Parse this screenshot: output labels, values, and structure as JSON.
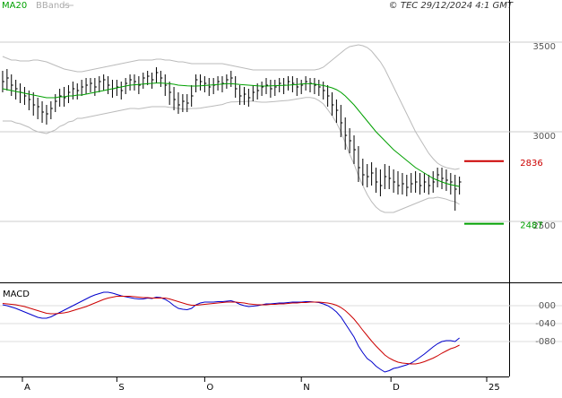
{
  "source": "© TEC 29/12/2024 4:1 GMT",
  "chart_data": [
    {
      "type": "ohlc",
      "xlim": [
        -0.6,
        115.3
      ],
      "xticks": [
        {
          "value": 4.5,
          "label": "A"
        },
        {
          "value": 26,
          "label": "S"
        },
        {
          "value": 46,
          "label": "O"
        },
        {
          "value": 68,
          "label": "N"
        },
        {
          "value": 88.4,
          "label": "D"
        },
        {
          "value": 110.2,
          "label": "25"
        }
      ],
      "ylim": [
        2160,
        3735
      ],
      "yticks": [
        2500,
        3000,
        3500
      ],
      "grid": true,
      "color": "#000000",
      "high": [
        3340,
        3350,
        3320,
        3290,
        3270,
        3250,
        3230,
        3220,
        3190,
        3170,
        3150,
        3170,
        3210,
        3240,
        3250,
        3260,
        3280,
        3270,
        3290,
        3300,
        3300,
        3300,
        3310,
        3320,
        3310,
        3290,
        3290,
        3280,
        3300,
        3320,
        3320,
        3310,
        3330,
        3340,
        3330,
        3360,
        3340,
        3320,
        3280,
        3250,
        3220,
        3210,
        3210,
        3260,
        3320,
        3320,
        3310,
        3300,
        3300,
        3310,
        3310,
        3320,
        3340,
        3310,
        3260,
        3250,
        3240,
        3260,
        3270,
        3280,
        3300,
        3290,
        3290,
        3300,
        3300,
        3310,
        3310,
        3300,
        3290,
        3310,
        3300,
        3300,
        3290,
        3280,
        3260,
        3220,
        3180,
        3150,
        3080,
        3020,
        2980,
        2920,
        2850,
        2820,
        2830,
        2800,
        2790,
        2820,
        2810,
        2790,
        2780,
        2770,
        2760,
        2770,
        2780,
        2770,
        2770,
        2760,
        2780,
        2800,
        2800,
        2790,
        2770,
        2760,
        2750
      ],
      "low": [
        3220,
        3230,
        3200,
        3180,
        3160,
        3150,
        3120,
        3090,
        3070,
        3050,
        3040,
        3070,
        3110,
        3140,
        3140,
        3160,
        3180,
        3180,
        3200,
        3210,
        3220,
        3200,
        3220,
        3230,
        3210,
        3190,
        3200,
        3180,
        3210,
        3230,
        3230,
        3210,
        3240,
        3260,
        3240,
        3270,
        3250,
        3200,
        3150,
        3120,
        3100,
        3110,
        3110,
        3140,
        3220,
        3230,
        3220,
        3200,
        3210,
        3230,
        3220,
        3240,
        3250,
        3190,
        3150,
        3150,
        3140,
        3170,
        3180,
        3200,
        3210,
        3190,
        3200,
        3220,
        3210,
        3230,
        3220,
        3200,
        3210,
        3230,
        3220,
        3210,
        3200,
        3180,
        3140,
        3090,
        3050,
        2970,
        2900,
        2880,
        2820,
        2720,
        2700,
        2690,
        2700,
        2660,
        2640,
        2680,
        2680,
        2660,
        2650,
        2650,
        2640,
        2660,
        2660,
        2650,
        2660,
        2650,
        2660,
        2690,
        2680,
        2670,
        2650,
        2560,
        2650
      ],
      "close": [
        3280,
        3300,
        3260,
        3240,
        3220,
        3200,
        3180,
        3150,
        3140,
        3110,
        3100,
        3130,
        3170,
        3200,
        3190,
        3220,
        3240,
        3230,
        3250,
        3260,
        3270,
        3250,
        3280,
        3290,
        3260,
        3240,
        3250,
        3230,
        3270,
        3290,
        3280,
        3260,
        3300,
        3310,
        3290,
        3330,
        3300,
        3260,
        3220,
        3180,
        3150,
        3170,
        3160,
        3200,
        3290,
        3280,
        3270,
        3250,
        3260,
        3280,
        3270,
        3290,
        3300,
        3240,
        3200,
        3210,
        3190,
        3220,
        3230,
        3250,
        3260,
        3240,
        3250,
        3270,
        3260,
        3280,
        3270,
        3250,
        3260,
        3280,
        3270,
        3260,
        3250,
        3230,
        3200,
        3150,
        3120,
        3050,
        2980,
        2950,
        2900,
        2800,
        2760,
        2750,
        2770,
        2720,
        2700,
        2750,
        2740,
        2720,
        2700,
        2710,
        2690,
        2710,
        2720,
        2700,
        2720,
        2700,
        2720,
        2760,
        2740,
        2730,
        2720,
        2680,
        2720
      ],
      "series": [
        {
          "name": "MA20",
          "color": "#00a000",
          "values": [
            3240,
            3235,
            3230,
            3225,
            3220,
            3215,
            3210,
            3205,
            3200,
            3195,
            3190,
            3190,
            3190,
            3195,
            3195,
            3200,
            3200,
            3205,
            3205,
            3210,
            3215,
            3220,
            3225,
            3230,
            3235,
            3240,
            3245,
            3250,
            3255,
            3260,
            3262,
            3264,
            3266,
            3268,
            3270,
            3272,
            3272,
            3270,
            3268,
            3265,
            3260,
            3258,
            3256,
            3255,
            3255,
            3256,
            3258,
            3260,
            3262,
            3264,
            3266,
            3268,
            3268,
            3266,
            3264,
            3262,
            3260,
            3258,
            3256,
            3255,
            3255,
            3256,
            3257,
            3258,
            3259,
            3260,
            3262,
            3264,
            3266,
            3268,
            3268,
            3266,
            3262,
            3258,
            3252,
            3245,
            3235,
            3220,
            3200,
            3175,
            3150,
            3120,
            3090,
            3060,
            3030,
            3000,
            2975,
            2950,
            2925,
            2900,
            2880,
            2860,
            2840,
            2820,
            2800,
            2785,
            2770,
            2755,
            2740,
            2730,
            2720,
            2712,
            2705,
            2700,
            2695
          ]
        },
        {
          "name": "BBands",
          "color": "#bbbbbb",
          "upper": [
            3420,
            3410,
            3400,
            3400,
            3395,
            3395,
            3395,
            3400,
            3400,
            3395,
            3390,
            3380,
            3370,
            3360,
            3350,
            3345,
            3340,
            3335,
            3335,
            3340,
            3345,
            3350,
            3355,
            3360,
            3365,
            3370,
            3375,
            3380,
            3385,
            3390,
            3395,
            3400,
            3400,
            3400,
            3400,
            3405,
            3405,
            3400,
            3400,
            3395,
            3390,
            3390,
            3385,
            3380,
            3380,
            3380,
            3380,
            3380,
            3380,
            3380,
            3380,
            3375,
            3370,
            3365,
            3360,
            3355,
            3350,
            3345,
            3345,
            3345,
            3345,
            3345,
            3345,
            3345,
            3345,
            3345,
            3345,
            3345,
            3345,
            3345,
            3345,
            3345,
            3350,
            3360,
            3380,
            3400,
            3420,
            3440,
            3460,
            3475,
            3480,
            3485,
            3480,
            3470,
            3450,
            3420,
            3390,
            3350,
            3300,
            3250,
            3200,
            3150,
            3100,
            3050,
            3000,
            2960,
            2920,
            2880,
            2850,
            2825,
            2810,
            2800,
            2795,
            2790,
            2795
          ],
          "lower": [
            3060,
            3060,
            3060,
            3050,
            3045,
            3035,
            3025,
            3010,
            3000,
            2995,
            2990,
            3000,
            3010,
            3030,
            3040,
            3055,
            3060,
            3075,
            3075,
            3080,
            3085,
            3090,
            3095,
            3100,
            3105,
            3110,
            3115,
            3120,
            3125,
            3130,
            3130,
            3128,
            3132,
            3136,
            3140,
            3140,
            3140,
            3140,
            3136,
            3135,
            3130,
            3126,
            3127,
            3130,
            3130,
            3132,
            3136,
            3140,
            3144,
            3148,
            3152,
            3161,
            3166,
            3167,
            3168,
            3169,
            3170,
            3171,
            3167,
            3165,
            3165,
            3167,
            3169,
            3171,
            3173,
            3175,
            3179,
            3183,
            3187,
            3191,
            3191,
            3187,
            3174,
            3156,
            3124,
            3090,
            3050,
            3000,
            2940,
            2875,
            2820,
            2755,
            2700,
            2650,
            2610,
            2580,
            2560,
            2550,
            2550,
            2550,
            2560,
            2570,
            2580,
            2590,
            2600,
            2610,
            2620,
            2630,
            2630,
            2635,
            2630,
            2624,
            2615,
            2610,
            2595
          ]
        }
      ],
      "levels": [
        {
          "value": 2836,
          "color": "#cc0000"
        },
        {
          "value": 2487,
          "color": "#00a000"
        }
      ]
    },
    {
      "type": "line",
      "title": "MACD",
      "xlim": [
        -0.6,
        115.3
      ],
      "ylim": [
        -158,
        46
      ],
      "yticks": [
        {
          "value": 0,
          "label": "000"
        },
        {
          "value": -40,
          "label": "-040"
        },
        {
          "value": -80,
          "label": "-080"
        }
      ],
      "grid": true,
      "series": [
        {
          "color": "#0000cc",
          "values": [
            2,
            0,
            -3,
            -6,
            -10,
            -14,
            -18,
            -22,
            -26,
            -28,
            -28,
            -25,
            -20,
            -15,
            -10,
            -5,
            0,
            5,
            10,
            15,
            20,
            24,
            27,
            30,
            30,
            28,
            25,
            22,
            20,
            18,
            16,
            15,
            15,
            17,
            16,
            19,
            18,
            14,
            8,
            0,
            -6,
            -8,
            -9,
            -6,
            2,
            6,
            8,
            8,
            8,
            9,
            9,
            10,
            11,
            8,
            3,
            0,
            -2,
            -1,
            0,
            2,
            4,
            4,
            5,
            6,
            6,
            7,
            8,
            8,
            8,
            9,
            9,
            8,
            7,
            4,
            0,
            -6,
            -14,
            -25,
            -40,
            -55,
            -70,
            -90,
            -105,
            -118,
            -125,
            -135,
            -142,
            -148,
            -145,
            -140,
            -138,
            -135,
            -132,
            -128,
            -122,
            -115,
            -108,
            -100,
            -92,
            -85,
            -80,
            -78,
            -78,
            -80,
            -72
          ]
        },
        {
          "color": "#cc0000",
          "values": [
            5,
            4,
            3,
            2,
            0,
            -2,
            -5,
            -8,
            -11,
            -14,
            -17,
            -18,
            -18,
            -17,
            -16,
            -14,
            -11,
            -8,
            -5,
            -2,
            2,
            6,
            10,
            14,
            17,
            19,
            21,
            21,
            21,
            21,
            20,
            19,
            18,
            18,
            17,
            17,
            17,
            17,
            15,
            12,
            9,
            6,
            3,
            1,
            1,
            2,
            3,
            4,
            5,
            6,
            7,
            8,
            8,
            8,
            7,
            6,
            4,
            3,
            2,
            2,
            2,
            3,
            3,
            4,
            4,
            5,
            6,
            6,
            7,
            7,
            8,
            8,
            8,
            7,
            6,
            4,
            1,
            -4,
            -11,
            -20,
            -30,
            -42,
            -55,
            -67,
            -79,
            -90,
            -100,
            -110,
            -117,
            -122,
            -126,
            -128,
            -129,
            -130,
            -130,
            -128,
            -125,
            -121,
            -117,
            -112,
            -106,
            -101,
            -96,
            -93,
            -88
          ]
        }
      ]
    }
  ]
}
